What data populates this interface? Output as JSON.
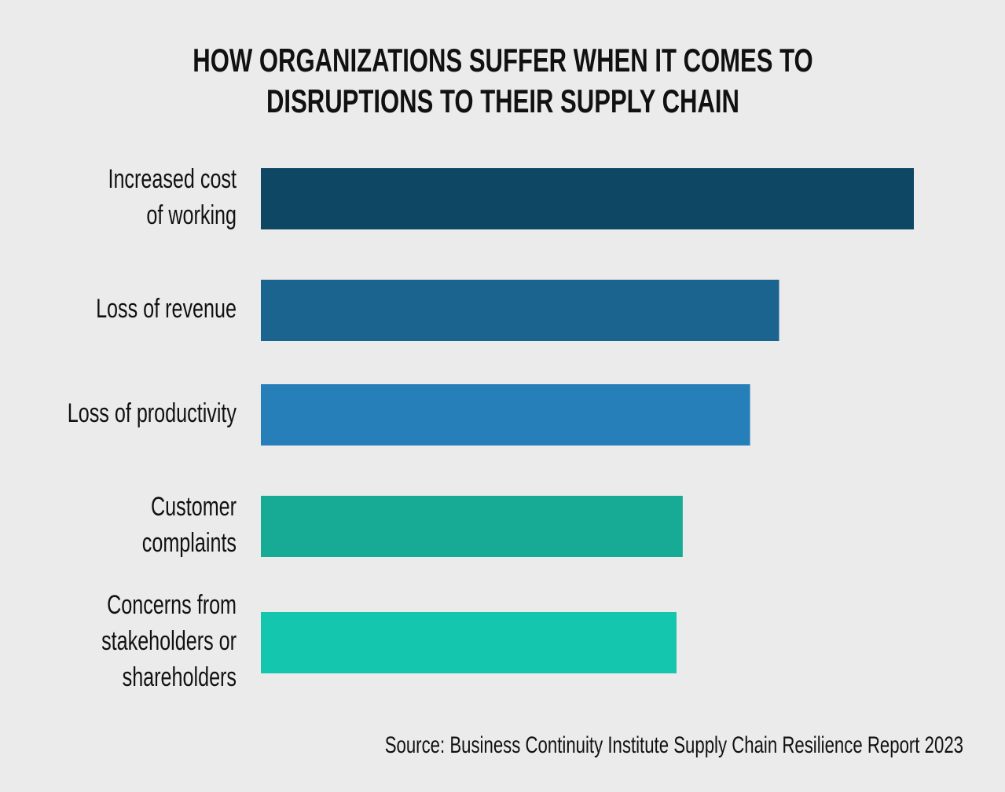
{
  "chart_data": {
    "type": "barh",
    "title": [
      "HOW ORGANIZATIONS SUFFER WHEN IT COMES TO",
      "DISRUPTIONS TO THEIR SUPPLY CHAIN"
    ],
    "categories": [
      [
        "Increased cost",
        "of working"
      ],
      [
        "Loss of revenue"
      ],
      [
        "Loss of productivity"
      ],
      [
        "Customer",
        "complaints"
      ],
      [
        "Concerns from",
        "stakeholders or",
        "shareholders"
      ]
    ],
    "values": [
      63,
      50,
      47.2,
      40.7,
      40.1
    ],
    "colors": [
      "#0e4763",
      "#1b6490",
      "#277fba",
      "#17ab96",
      "#13c6ad"
    ],
    "xlim": [
      0,
      63
    ],
    "source": "Source: Business Continuity Institute Supply Chain Resilience Report 2023"
  }
}
